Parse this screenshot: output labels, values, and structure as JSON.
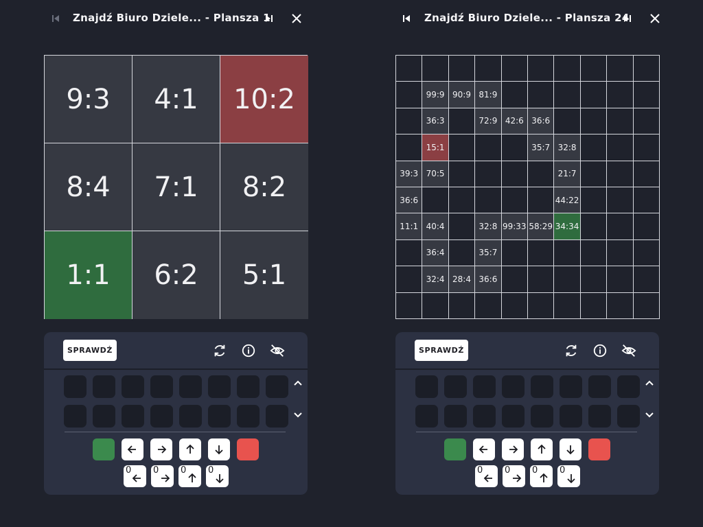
{
  "left": {
    "title": "Znajdź Biuro Dziele...",
    "board_label": "- Plansza 1",
    "grid_size": 3,
    "cells": [
      {
        "row": 0,
        "col": 0,
        "text": "9:3",
        "style": "filled"
      },
      {
        "row": 0,
        "col": 1,
        "text": "4:1",
        "style": "filled"
      },
      {
        "row": 0,
        "col": 2,
        "text": "10:2",
        "style": "red"
      },
      {
        "row": 1,
        "col": 0,
        "text": "8:4",
        "style": "filled"
      },
      {
        "row": 1,
        "col": 1,
        "text": "7:1",
        "style": "filled"
      },
      {
        "row": 1,
        "col": 2,
        "text": "8:2",
        "style": "filled"
      },
      {
        "row": 2,
        "col": 0,
        "text": "1:1",
        "style": "green"
      },
      {
        "row": 2,
        "col": 1,
        "text": "6:2",
        "style": "filled"
      },
      {
        "row": 2,
        "col": 2,
        "text": "5:1",
        "style": "filled"
      }
    ],
    "check_label": "SPRAWDŹ"
  },
  "right": {
    "title": "Znajdź Biuro Dziele...",
    "board_label": "- Plansza 24",
    "grid_size": 10,
    "cells": [
      {
        "row": 1,
        "col": 1,
        "text": "99:9",
        "style": "filled"
      },
      {
        "row": 1,
        "col": 2,
        "text": "90:9",
        "style": "filled"
      },
      {
        "row": 1,
        "col": 3,
        "text": "81:9",
        "style": "filled"
      },
      {
        "row": 2,
        "col": 1,
        "text": "36:3",
        "style": "filled"
      },
      {
        "row": 2,
        "col": 3,
        "text": "72:9",
        "style": "filled"
      },
      {
        "row": 2,
        "col": 4,
        "text": "42:6",
        "style": "filled"
      },
      {
        "row": 2,
        "col": 5,
        "text": "36:6",
        "style": "filled"
      },
      {
        "row": 3,
        "col": 1,
        "text": "15:1",
        "style": "red"
      },
      {
        "row": 3,
        "col": 5,
        "text": "35:7",
        "style": "filled"
      },
      {
        "row": 3,
        "col": 6,
        "text": "32:8",
        "style": "filled"
      },
      {
        "row": 4,
        "col": 0,
        "text": "39:3",
        "style": "filled"
      },
      {
        "row": 4,
        "col": 1,
        "text": "70:5",
        "style": "filled"
      },
      {
        "row": 4,
        "col": 6,
        "text": "21:7",
        "style": "filled"
      },
      {
        "row": 5,
        "col": 0,
        "text": "36:6",
        "style": "filled"
      },
      {
        "row": 5,
        "col": 6,
        "text": "44:22",
        "style": "filled"
      },
      {
        "row": 6,
        "col": 0,
        "text": "11:1",
        "style": "filled"
      },
      {
        "row": 6,
        "col": 1,
        "text": "40:4",
        "style": "filled"
      },
      {
        "row": 6,
        "col": 3,
        "text": "32:8",
        "style": "filled"
      },
      {
        "row": 6,
        "col": 4,
        "text": "99:33",
        "style": "filled"
      },
      {
        "row": 6,
        "col": 5,
        "text": "58:29",
        "style": "filled"
      },
      {
        "row": 6,
        "col": 6,
        "text": "34:34",
        "style": "green"
      },
      {
        "row": 7,
        "col": 1,
        "text": "36:4",
        "style": "filled"
      },
      {
        "row": 7,
        "col": 3,
        "text": "35:7",
        "style": "filled"
      },
      {
        "row": 8,
        "col": 1,
        "text": "32:4",
        "style": "filled"
      },
      {
        "row": 8,
        "col": 2,
        "text": "28:4",
        "style": "filled"
      },
      {
        "row": 8,
        "col": 3,
        "text": "36:6",
        "style": "filled"
      }
    ],
    "check_label": "SPRAWDŹ"
  },
  "command_slots_visible": 16,
  "controls": {
    "colors": {
      "green": "#3b8a4d",
      "red": "#e8534e",
      "cell_red": "#8b3f43",
      "cell_green": "#2f6c3e"
    },
    "move_keys": [
      "arrow-left",
      "arrow-right",
      "arrow-up",
      "arrow-down"
    ],
    "counter_keys": [
      {
        "count": "0",
        "direction": "left"
      },
      {
        "count": "0",
        "direction": "right"
      },
      {
        "count": "0",
        "direction": "up"
      },
      {
        "count": "0",
        "direction": "down"
      }
    ]
  },
  "icons": [
    "skip-first-icon",
    "skip-last-icon",
    "close-icon",
    "refresh-icon",
    "info-icon",
    "eye-off-icon",
    "chevron-up-icon",
    "chevron-down-icon"
  ]
}
